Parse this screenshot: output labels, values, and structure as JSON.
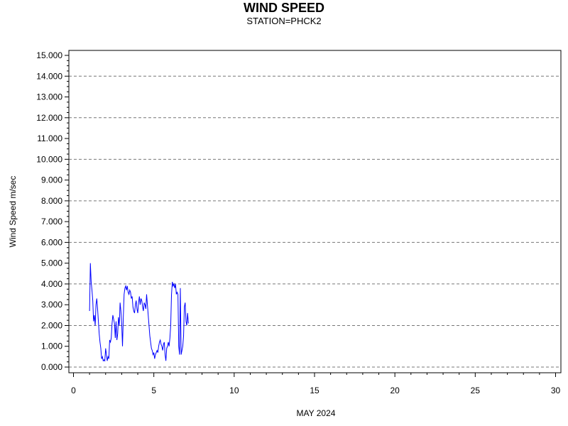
{
  "chart_data": {
    "type": "line",
    "title": "WIND SPEED",
    "subtitle": "STATION=PHCK2",
    "xlabel": "MAY 2024",
    "ylabel": "Wind Speed m/sec",
    "xlim": [
      0,
      30
    ],
    "ylim": [
      0,
      15
    ],
    "x_ticks": [
      0,
      5,
      10,
      15,
      20,
      25,
      30
    ],
    "x_tick_labels": [
      "0",
      "5",
      "10",
      "15",
      "20",
      "25",
      "30"
    ],
    "y_ticks": [
      0,
      1,
      2,
      3,
      4,
      5,
      6,
      7,
      8,
      9,
      10,
      11,
      12,
      13,
      14,
      15
    ],
    "y_tick_labels": [
      "0.000",
      "1.000",
      "2.000",
      "3.000",
      "4.000",
      "5.000",
      "6.000",
      "7.000",
      "8.000",
      "9.000",
      "10.000",
      "11.000",
      "12.000",
      "13.000",
      "14.000",
      "15.000"
    ],
    "grid": "horizontal dashed at even values",
    "line_color": "#0000ff",
    "series": [
      {
        "values": [
          [
            1.0,
            2.7
          ],
          [
            1.05,
            5.0
          ],
          [
            1.1,
            4.1
          ],
          [
            1.15,
            3.7
          ],
          [
            1.2,
            3.2
          ],
          [
            1.25,
            2.2
          ],
          [
            1.3,
            2.5
          ],
          [
            1.35,
            2.0
          ],
          [
            1.4,
            3.0
          ],
          [
            1.45,
            3.3
          ],
          [
            1.5,
            2.8
          ],
          [
            1.55,
            2.2
          ],
          [
            1.6,
            1.6
          ],
          [
            1.65,
            1.2
          ],
          [
            1.7,
            0.9
          ],
          [
            1.75,
            0.4
          ],
          [
            1.8,
            0.5
          ],
          [
            1.85,
            0.3
          ],
          [
            1.9,
            0.35
          ],
          [
            1.95,
            0.3
          ],
          [
            2.0,
            0.9
          ],
          [
            2.05,
            0.6
          ],
          [
            2.1,
            0.3
          ],
          [
            2.15,
            0.5
          ],
          [
            2.2,
            0.4
          ],
          [
            2.25,
            1.3
          ],
          [
            2.3,
            1.2
          ],
          [
            2.35,
            1.4
          ],
          [
            2.4,
            2.1
          ],
          [
            2.45,
            2.5
          ],
          [
            2.5,
            2.3
          ],
          [
            2.55,
            2.1
          ],
          [
            2.6,
            1.4
          ],
          [
            2.65,
            2.2
          ],
          [
            2.7,
            1.3
          ],
          [
            2.75,
            1.6
          ],
          [
            2.8,
            2.4
          ],
          [
            2.85,
            2.0
          ],
          [
            2.9,
            3.1
          ],
          [
            2.95,
            2.7
          ],
          [
            3.0,
            2.1
          ],
          [
            3.05,
            1.0
          ],
          [
            3.1,
            2.4
          ],
          [
            3.15,
            3.5
          ],
          [
            3.2,
            3.8
          ],
          [
            3.25,
            3.9
          ],
          [
            3.3,
            3.7
          ],
          [
            3.35,
            3.9
          ],
          [
            3.4,
            3.6
          ],
          [
            3.45,
            3.5
          ],
          [
            3.5,
            3.7
          ],
          [
            3.55,
            3.6
          ],
          [
            3.6,
            3.3
          ],
          [
            3.65,
            3.4
          ],
          [
            3.7,
            2.9
          ],
          [
            3.75,
            2.7
          ],
          [
            3.8,
            2.6
          ],
          [
            3.85,
            3.0
          ],
          [
            3.9,
            3.2
          ],
          [
            3.95,
            2.8
          ],
          [
            4.0,
            2.6
          ],
          [
            4.05,
            3.1
          ],
          [
            4.1,
            3.4
          ],
          [
            4.15,
            3.0
          ],
          [
            4.2,
            3.3
          ],
          [
            4.25,
            3.2
          ],
          [
            4.3,
            2.9
          ],
          [
            4.35,
            2.7
          ],
          [
            4.4,
            3.1
          ],
          [
            4.45,
            3.0
          ],
          [
            4.5,
            2.8
          ],
          [
            4.55,
            3.5
          ],
          [
            4.6,
            3.0
          ],
          [
            4.65,
            2.5
          ],
          [
            4.7,
            2.0
          ],
          [
            4.75,
            1.5
          ],
          [
            4.8,
            1.2
          ],
          [
            4.85,
            0.9
          ],
          [
            4.9,
            0.8
          ],
          [
            4.95,
            0.6
          ],
          [
            5.0,
            0.7
          ],
          [
            5.05,
            0.4
          ],
          [
            5.1,
            0.6
          ],
          [
            5.15,
            0.7
          ],
          [
            5.2,
            0.8
          ],
          [
            5.25,
            0.7
          ],
          [
            5.3,
            1.0
          ],
          [
            5.35,
            1.2
          ],
          [
            5.4,
            1.3
          ],
          [
            5.45,
            1.1
          ],
          [
            5.5,
            1.0
          ],
          [
            5.55,
            0.8
          ],
          [
            5.6,
            1.1
          ],
          [
            5.65,
            1.2
          ],
          [
            5.7,
            0.6
          ],
          [
            5.75,
            0.3
          ],
          [
            5.8,
            0.9
          ],
          [
            5.85,
            1.0
          ],
          [
            5.9,
            1.2
          ],
          [
            5.95,
            1.0
          ],
          [
            6.0,
            1.4
          ],
          [
            6.05,
            2.0
          ],
          [
            6.1,
            3.5
          ],
          [
            6.15,
            4.1
          ],
          [
            6.2,
            3.9
          ],
          [
            6.25,
            4.0
          ],
          [
            6.3,
            3.8
          ],
          [
            6.35,
            4.0
          ],
          [
            6.4,
            3.5
          ],
          [
            6.45,
            3.6
          ],
          [
            6.5,
            3.5
          ],
          [
            6.55,
            1.0
          ],
          [
            6.6,
            0.6
          ],
          [
            6.65,
            3.8
          ],
          [
            6.7,
            0.6
          ],
          [
            6.75,
            0.8
          ],
          [
            6.8,
            1.0
          ],
          [
            6.85,
            1.5
          ],
          [
            6.9,
            2.9
          ],
          [
            6.95,
            3.1
          ],
          [
            7.0,
            2.2
          ],
          [
            7.05,
            2.0
          ],
          [
            7.1,
            2.6
          ],
          [
            7.15,
            2.1
          ]
        ]
      }
    ]
  }
}
